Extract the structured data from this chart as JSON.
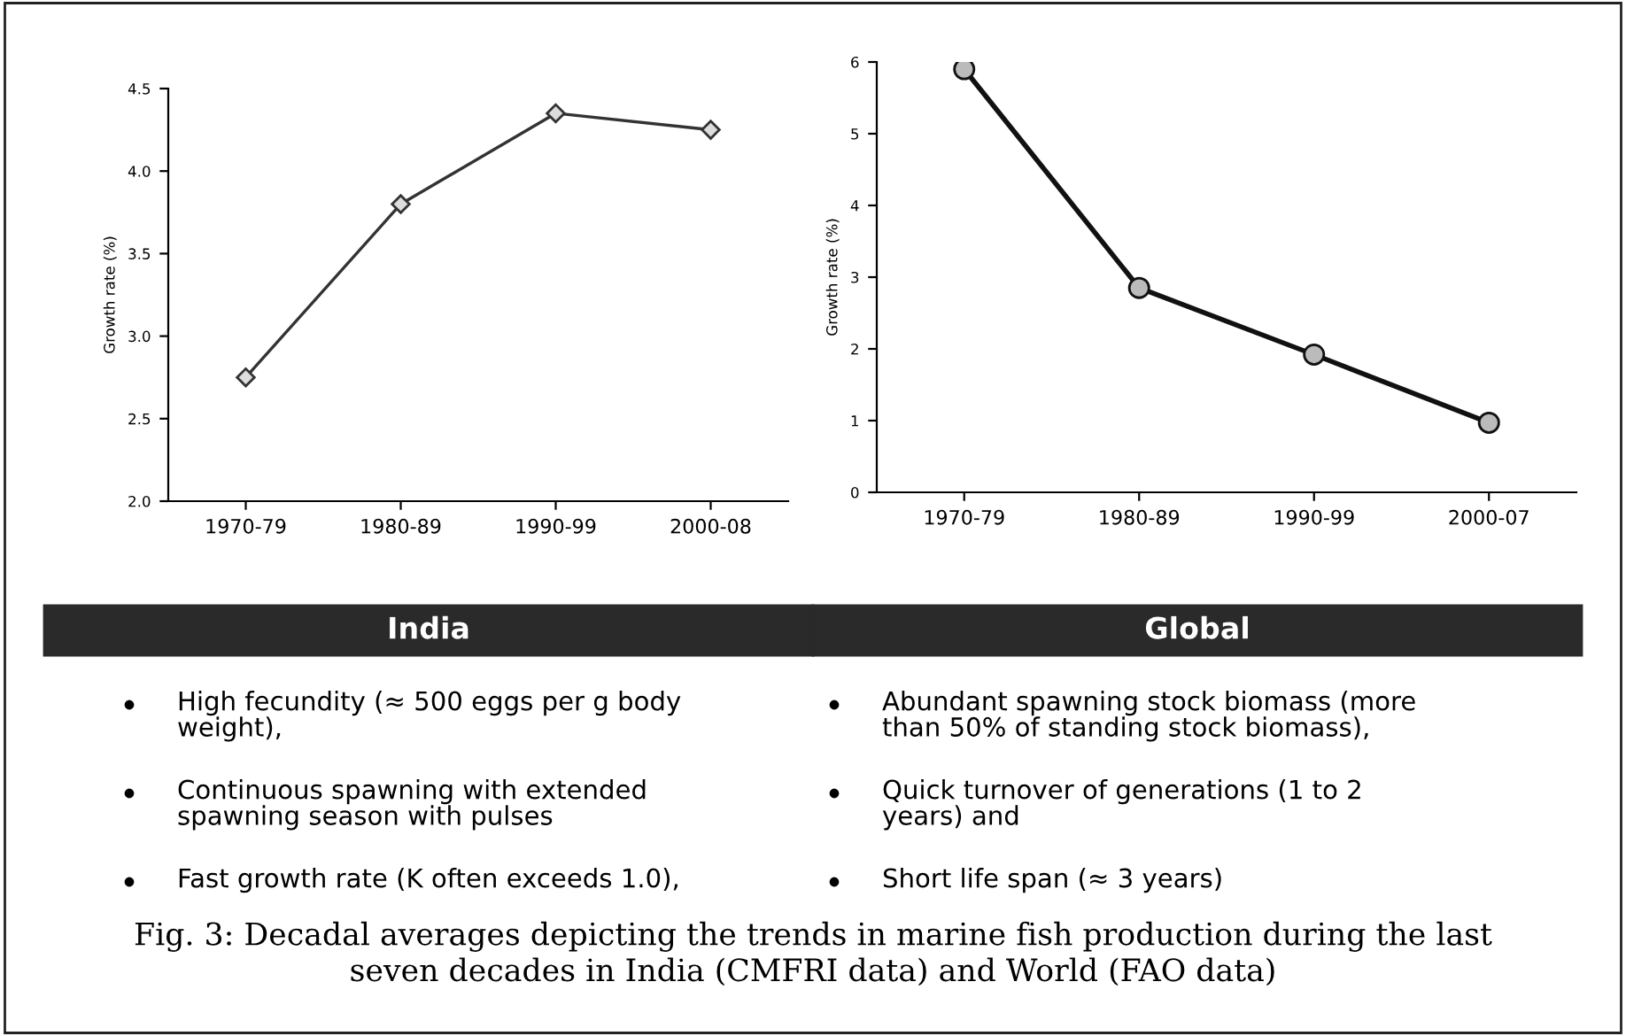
{
  "chart_data": [
    {
      "type": "line",
      "title": "India",
      "ylabel": "Growth rate (%)",
      "categories": [
        "1970-79",
        "1980-89",
        "1990-99",
        "2000-08"
      ],
      "series": [
        {
          "color": "#333333",
          "values": [
            2.75,
            3.8,
            4.35,
            4.25
          ]
        }
      ],
      "marker": "diamond",
      "line_style": "solid",
      "ylim": [
        2.0,
        4.5
      ],
      "yticks": [
        {
          "value": 2,
          "label": "2.0"
        },
        {
          "value": 2.5,
          "label": "2.5"
        },
        {
          "value": 3,
          "label": "3.0"
        },
        {
          "value": 3.5,
          "label": "3.5"
        },
        {
          "value": 4,
          "label": "4.0"
        },
        {
          "value": 4.5,
          "label": "4.5"
        }
      ],
      "annotations": [
        "High fecundity (≈ 500 eggs per g body\nweight),",
        "Continuous spawning with extended\nspawning season with pulses",
        "Fast growth rate (K often exceeds 1.0),"
      ]
    },
    {
      "type": "line",
      "title": "Global",
      "ylabel": "Growth rate (%)",
      "categories": [
        "1970-79",
        "1980-89",
        "1990-99",
        "2000-07"
      ],
      "series": [
        {
          "color": "#111111",
          "values": [
            5.9,
            2.85,
            1.92,
            0.97
          ]
        }
      ],
      "marker": "circle",
      "line_style": "solid",
      "ylim": [
        0,
        6
      ],
      "yticks": [
        0,
        1,
        2,
        3,
        4,
        5,
        6
      ],
      "annotations": [
        "Abundant spawning stock biomass (more\nthan 50% of standing stock biomass),",
        "Quick turnover of generations (1 to 2\nyears) and",
        "Short life span (≈ 3 years)"
      ]
    },
    {
      "type": "other",
      "annotations": [
        "Fig. 3: Decadal averages depicting the trends in marine fish production during the last\nseven decades in India (CMFRI data) and World (FAO data)"
      ]
    }
  ]
}
